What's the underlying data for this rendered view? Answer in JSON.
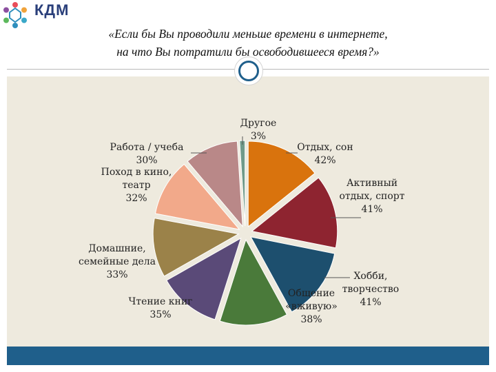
{
  "logo": {
    "text": "КДМ",
    "icon": "snowflake-people-logo-icon"
  },
  "title_line1": "«Если бы Вы проводили меньше времени в интернете,",
  "title_line2": "на что Вы потратили бы освободившееся время?»",
  "colors": {
    "panel": "#eeeade",
    "bottom_bar": "#1f5f8b"
  },
  "chart_data": {
    "type": "pie",
    "title": "«Если бы Вы проводили меньше времени в интернете, на что Вы потратили бы освободившееся время?»",
    "categories": [
      "Отдых, сон",
      "Активный отдых, спорт",
      "Хобби, творчество",
      "Общение «вживую»",
      "Чтение книг",
      "Домашние, семейные дела",
      "Поход в кино, театр",
      "Работа / учеба",
      "Другое"
    ],
    "values": [
      42,
      41,
      41,
      38,
      35,
      33,
      32,
      30,
      3
    ],
    "value_labels": [
      "42%",
      "41%",
      "41%",
      "38%",
      "35%",
      "33%",
      "32%",
      "30%",
      "3%"
    ],
    "colors": [
      "#d9730d",
      "#8e2430",
      "#1d4f6e",
      "#4a7a3a",
      "#5a4a78",
      "#9b8249",
      "#f2a98a",
      "#b98888",
      "#6f9a8a"
    ],
    "legend": "none"
  }
}
